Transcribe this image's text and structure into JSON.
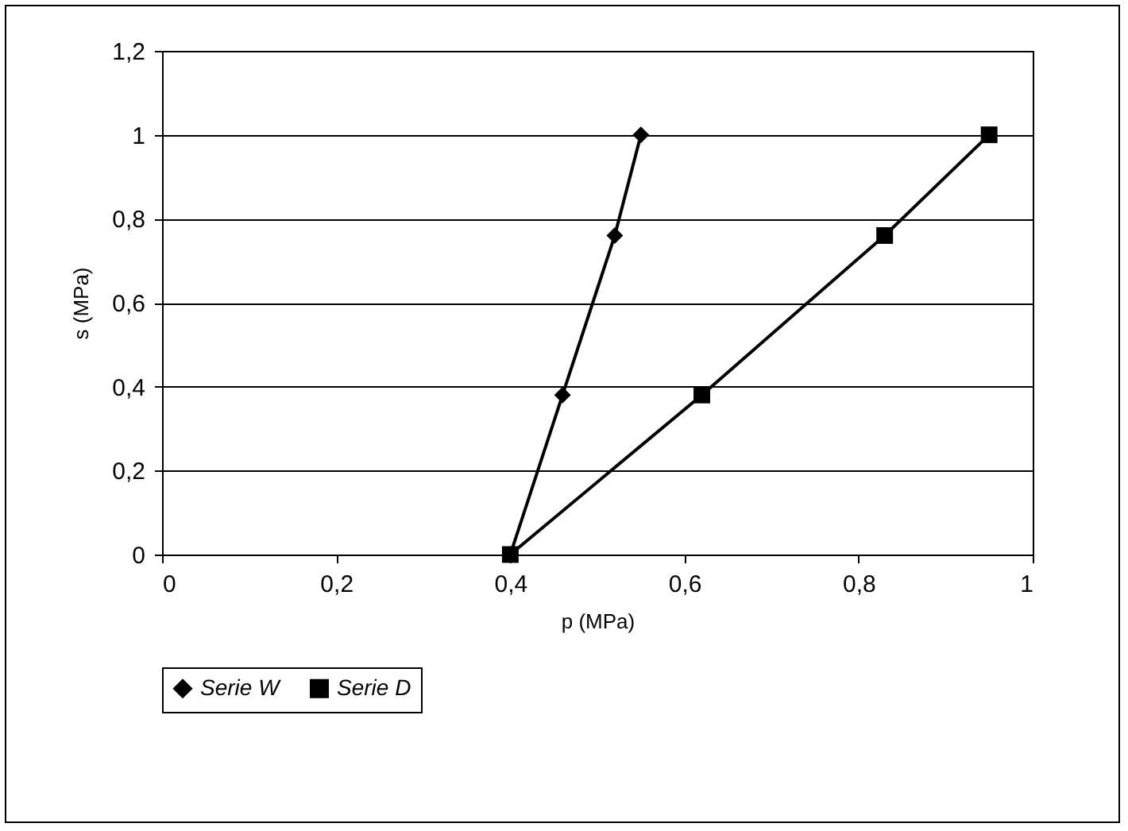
{
  "chart_data": {
    "type": "line",
    "xlabel": "p (MPa)",
    "ylabel": "s (MPa)",
    "xlim": [
      0,
      1
    ],
    "ylim": [
      0,
      1.2
    ],
    "xticks": [
      0,
      {
        "value": 0.2,
        "label": "0,2"
      },
      {
        "value": 0.4,
        "label": "0,4"
      },
      {
        "value": 0.6,
        "label": "0,6"
      },
      {
        "value": 0.8,
        "label": "0,8"
      },
      1
    ],
    "yticks": [
      0,
      {
        "value": 0.2,
        "label": "0,2"
      },
      {
        "value": 0.4,
        "label": "0,4"
      },
      {
        "value": 0.6,
        "label": "0,6"
      },
      {
        "value": 0.8,
        "label": "0,8"
      },
      1,
      {
        "value": 1.2,
        "label": "1,2"
      }
    ],
    "grid": "y",
    "legend": "bottom",
    "series": [
      {
        "name": "Serie W",
        "color": "#000000",
        "marker": "diamond",
        "x": [
          0.4,
          0.46,
          0.52,
          0.55
        ],
        "values": [
          0,
          0.38,
          0.76,
          1.0
        ]
      },
      {
        "name": "Serie D",
        "color": "#000000",
        "marker": "square",
        "x": [
          0.4,
          0.62,
          0.83,
          0.95
        ],
        "values": [
          0,
          0.38,
          0.76,
          1.0
        ]
      }
    ]
  }
}
